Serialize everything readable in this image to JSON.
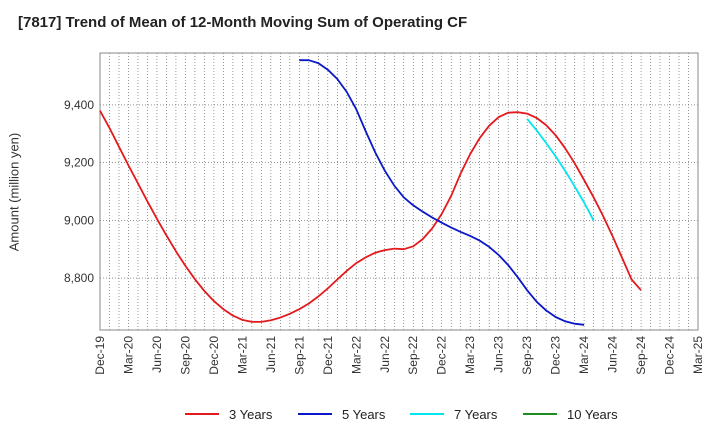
{
  "chart_data": {
    "type": "line",
    "title": "[7817]  Trend of Mean of 12-Month Moving Sum of Operating CF",
    "xlabel": "",
    "ylabel": "Amount (million yen)",
    "ylim": [
      8620,
      9580
    ],
    "yticks": [
      8800,
      9000,
      9200,
      9400
    ],
    "ytick_labels": [
      "8,800",
      "9,000",
      "9,200",
      "9,400"
    ],
    "xticks": [
      "Dec-19",
      "Mar-20",
      "Jun-20",
      "Sep-20",
      "Dec-20",
      "Mar-21",
      "Jun-21",
      "Sep-21",
      "Dec-21",
      "Mar-22",
      "Jun-22",
      "Sep-22",
      "Dec-22",
      "Mar-23",
      "Jun-23",
      "Sep-23",
      "Dec-23",
      "Mar-24",
      "Jun-24",
      "Sep-24",
      "Dec-24",
      "Mar-25"
    ],
    "x_start": "Dec-19",
    "x_end_month_index": 63,
    "grid": true,
    "legend_position": "bottom",
    "series": [
      {
        "name": "3 Years",
        "color": "#e31a1c",
        "start_month_index": 0,
        "values": [
          9380,
          9320,
          9255,
          9190,
          9128,
          9065,
          9005,
          8948,
          8893,
          8842,
          8796,
          8755,
          8720,
          8692,
          8670,
          8655,
          8648,
          8648,
          8654,
          8663,
          8676,
          8692,
          8712,
          8736,
          8764,
          8795,
          8825,
          8852,
          8872,
          8888,
          8897,
          8902,
          8900,
          8910,
          8935,
          8972,
          9022,
          9085,
          9163,
          9230,
          9285,
          9328,
          9358,
          9373,
          9375,
          9370,
          9355,
          9330,
          9295,
          9250,
          9198,
          9140,
          9080,
          9015,
          8945,
          8870,
          8795,
          8758
        ]
      },
      {
        "name": "5 Years",
        "color": "#0a18c8",
        "start_month_index": 21,
        "values": [
          9555,
          9555,
          9545,
          9522,
          9490,
          9445,
          9385,
          9308,
          9235,
          9172,
          9120,
          9080,
          9052,
          9030,
          9010,
          8992,
          8975,
          8960,
          8946,
          8930,
          8908,
          8880,
          8845,
          8803,
          8758,
          8718,
          8688,
          8665,
          8650,
          8642,
          8638
        ]
      },
      {
        "name": "7 Years",
        "color": "#00e5ee",
        "start_month_index": 45,
        "values": [
          9352,
          9312,
          9268,
          9222,
          9172,
          9118,
          9062,
          9000
        ]
      },
      {
        "name": "10 Years",
        "color": "#1e8c1e",
        "start_month_index": 0,
        "values": []
      }
    ]
  }
}
